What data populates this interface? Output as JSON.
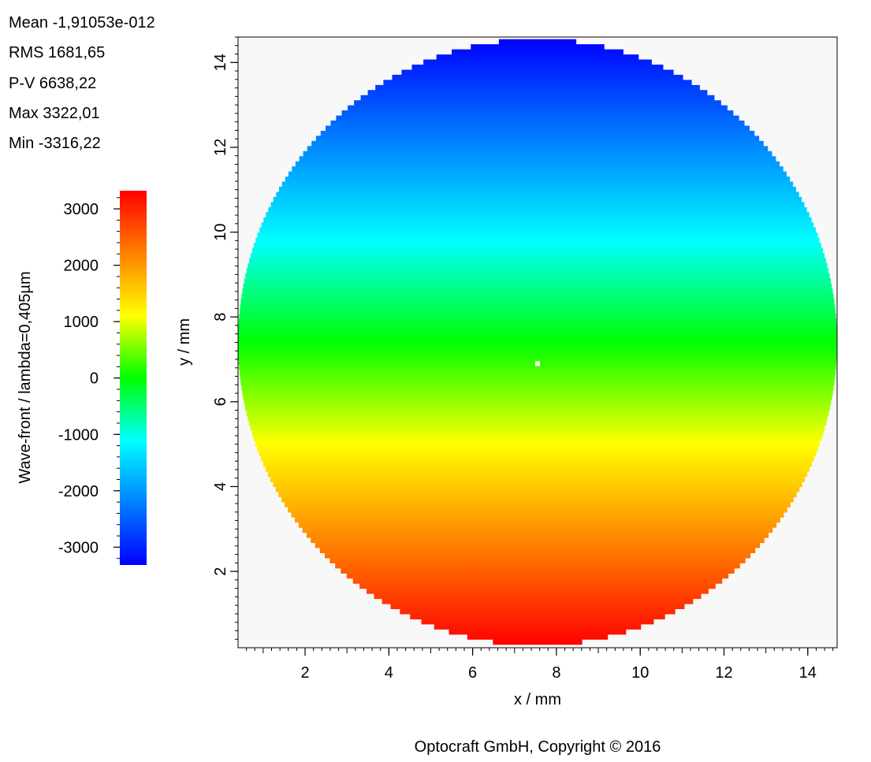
{
  "stats": {
    "mean": "Mean -1,91053e-012",
    "rms": "RMS 1681,65",
    "pv": "P-V 6638,22",
    "max": "Max 3322,01",
    "min": "Min -3316,22"
  },
  "colors": {
    "background": "#f8f8f8",
    "colormap": [
      "#0000ff",
      "#0080ff",
      "#00ffff",
      "#00ff00",
      "#ffff00",
      "#ff8000",
      "#ff0000"
    ]
  },
  "chart_data": {
    "type": "heatmap",
    "title": "",
    "xlabel": "x / mm",
    "ylabel": "y / mm",
    "xlim": [
      0.4,
      14.7
    ],
    "ylim": [
      0.2,
      14.6
    ],
    "xticks": [
      2,
      4,
      6,
      8,
      10,
      12,
      14
    ],
    "yticks": [
      2,
      4,
      6,
      8,
      10,
      12,
      14
    ],
    "aperture": {
      "shape": "circle",
      "center_x": 7.55,
      "center_y": 7.4,
      "radius": 7.15
    },
    "field": {
      "description": "linear tilt in y",
      "value_at_top": -3316.22,
      "value_at_bottom": 3322.01,
      "zero_at_y": 7.4
    },
    "marker": {
      "x": 7.55,
      "y": 6.9
    },
    "colorbar": {
      "label": "Wave-front / lambda=0,405µm",
      "range": [
        -3316.22,
        3322.01
      ],
      "ticks": [
        3000,
        2000,
        1000,
        0,
        -1000,
        -2000,
        -3000
      ]
    },
    "copyright": "Optocraft GmbH, Copyright © 2016"
  }
}
